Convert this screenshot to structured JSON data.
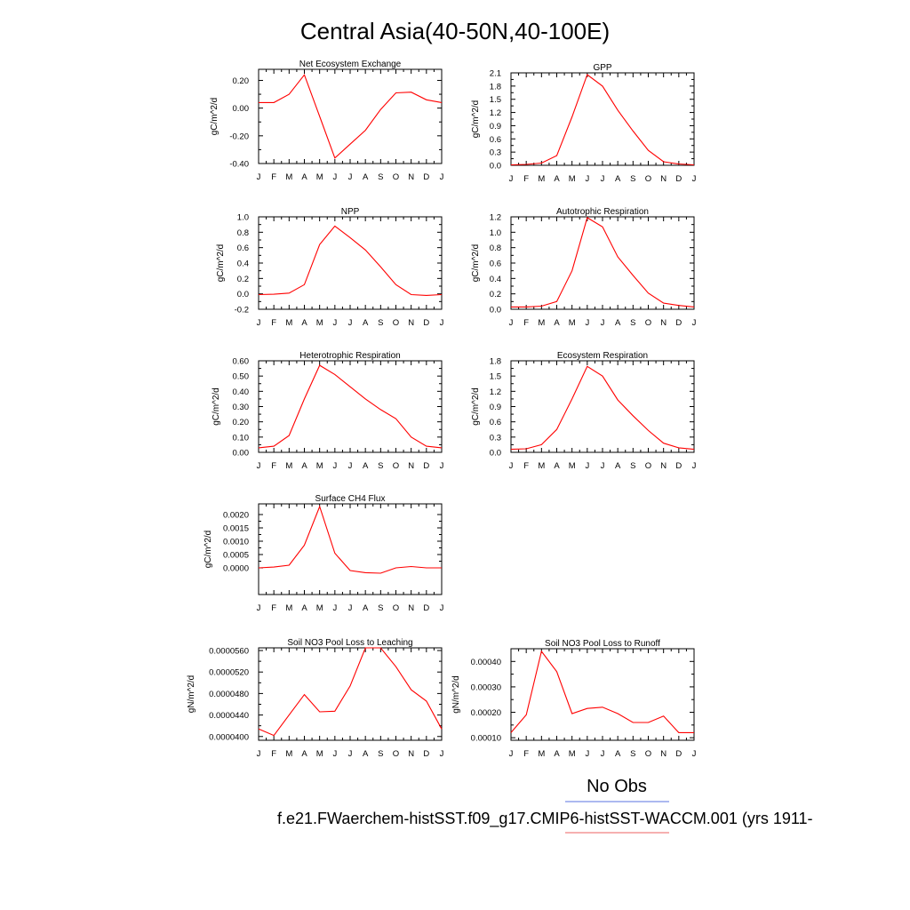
{
  "figure": {
    "title": "Central Asia(40-50N,40-100E)",
    "legend": [
      {
        "label": "No Obs",
        "color": "#7b8fe8"
      },
      {
        "label": "",
        "color": "#f08080"
      }
    ],
    "caption": "f.e21.FWaerchem-histSST.f09_g17.CMIP6-histSST-WACCM.001 (yrs 1911-"
  },
  "chart_data": [
    {
      "type": "line",
      "title": "Net Ecosystem Exchange",
      "ylabel": "gC/m^2/d",
      "categories": [
        "J",
        "F",
        "M",
        "A",
        "M",
        "J",
        "J",
        "A",
        "S",
        "O",
        "N",
        "D",
        "J"
      ],
      "yticks": [
        "-0.40",
        "-0.20",
        "0.00",
        "0.20"
      ],
      "ylim": [
        -0.4,
        0.28
      ],
      "series": [
        {
          "color": "#ff0000",
          "values": [
            0.04,
            0.04,
            0.1,
            0.24,
            -0.06,
            -0.36,
            -0.26,
            -0.16,
            -0.01,
            0.11,
            0.115,
            0.06,
            0.04
          ]
        }
      ]
    },
    {
      "type": "line",
      "title": "GPP",
      "ylabel": "gC/m^2/d",
      "categories": [
        "J",
        "F",
        "M",
        "A",
        "M",
        "J",
        "J",
        "A",
        "S",
        "O",
        "N",
        "D",
        "J"
      ],
      "yticks": [
        "0.0",
        "0.3",
        "0.6",
        "0.9",
        "1.2",
        "1.5",
        "1.8",
        "2.1"
      ],
      "ylim": [
        0.0,
        2.1
      ],
      "series": [
        {
          "color": "#ff0000",
          "values": [
            0.01,
            0.02,
            0.05,
            0.22,
            1.1,
            2.06,
            1.8,
            1.25,
            0.78,
            0.34,
            0.08,
            0.03,
            0.01
          ]
        }
      ]
    },
    {
      "type": "line",
      "title": "NPP",
      "ylabel": "gC/m^2/d",
      "categories": [
        "J",
        "F",
        "M",
        "A",
        "M",
        "J",
        "J",
        "A",
        "S",
        "O",
        "N",
        "D",
        "J"
      ],
      "yticks": [
        "-0.2",
        "0.0",
        "0.2",
        "0.4",
        "0.6",
        "0.8",
        "1.0"
      ],
      "ylim": [
        -0.2,
        1.0
      ],
      "series": [
        {
          "color": "#ff0000",
          "values": [
            -0.01,
            -0.005,
            0.01,
            0.12,
            0.64,
            0.88,
            0.73,
            0.57,
            0.35,
            0.12,
            -0.01,
            -0.02,
            -0.01
          ]
        }
      ]
    },
    {
      "type": "line",
      "title": "Autotrophic Respiration",
      "ylabel": "gC/m^2/d",
      "categories": [
        "J",
        "F",
        "M",
        "A",
        "M",
        "J",
        "J",
        "A",
        "S",
        "O",
        "N",
        "D",
        "J"
      ],
      "yticks": [
        "0.0",
        "0.2",
        "0.4",
        "0.6",
        "0.8",
        "1.0",
        "1.2"
      ],
      "ylim": [
        0.0,
        1.2
      ],
      "series": [
        {
          "color": "#ff0000",
          "values": [
            0.03,
            0.03,
            0.04,
            0.1,
            0.5,
            1.19,
            1.07,
            0.68,
            0.44,
            0.21,
            0.08,
            0.05,
            0.03
          ]
        }
      ]
    },
    {
      "type": "line",
      "title": "Heterotrophic Respiration",
      "ylabel": "gC/m^2/d",
      "categories": [
        "J",
        "F",
        "M",
        "A",
        "M",
        "J",
        "J",
        "A",
        "S",
        "O",
        "N",
        "D",
        "J"
      ],
      "yticks": [
        "0.00",
        "0.10",
        "0.20",
        "0.30",
        "0.40",
        "0.50",
        "0.60"
      ],
      "ylim": [
        0.0,
        0.6
      ],
      "series": [
        {
          "color": "#ff0000",
          "values": [
            0.03,
            0.04,
            0.11,
            0.35,
            0.57,
            0.51,
            0.43,
            0.35,
            0.28,
            0.22,
            0.1,
            0.04,
            0.03
          ]
        }
      ]
    },
    {
      "type": "line",
      "title": "Ecosystem Respiration",
      "ylabel": "gC/m^2/d",
      "categories": [
        "J",
        "F",
        "M",
        "A",
        "M",
        "J",
        "J",
        "A",
        "S",
        "O",
        "N",
        "D",
        "J"
      ],
      "yticks": [
        "0.0",
        "0.3",
        "0.6",
        "0.9",
        "1.2",
        "1.5",
        "1.8"
      ],
      "ylim": [
        0.0,
        1.8
      ],
      "series": [
        {
          "color": "#ff0000",
          "values": [
            0.06,
            0.07,
            0.15,
            0.45,
            1.05,
            1.69,
            1.5,
            1.03,
            0.72,
            0.43,
            0.18,
            0.09,
            0.06
          ]
        }
      ]
    },
    {
      "type": "line",
      "title": "Surface CH4 Flux",
      "ylabel": "gC/m^2/d",
      "categories": [
        "J",
        "F",
        "M",
        "A",
        "M",
        "J",
        "J",
        "A",
        "S",
        "O",
        "N",
        "D",
        "J"
      ],
      "yticks": [
        "0.0000",
        "0.0005",
        "0.0010",
        "0.0015",
        "0.0020"
      ],
      "ylim": [
        -0.001,
        0.0024
      ],
      "series": [
        {
          "color": "#ff0000",
          "values": [
            0.0,
            3e-05,
            0.0001,
            0.00085,
            0.0023,
            0.00055,
            -0.0001,
            -0.00018,
            -0.0002,
            0.0,
            5e-05,
            0.0,
            0.0
          ]
        }
      ]
    },
    {
      "type": "line",
      "title": "Soil NO3 Pool Loss to Leaching",
      "ylabel": "gN/m^2/d",
      "categories": [
        "J",
        "F",
        "M",
        "A",
        "M",
        "J",
        "J",
        "A",
        "S",
        "O",
        "N",
        "D",
        "J"
      ],
      "yticks": [
        "0.0000400",
        "0.0000440",
        "0.0000480",
        "0.0000520",
        "0.0000560"
      ],
      "ylim": [
        3.93e-05,
        5.65e-05
      ],
      "series": [
        {
          "color": "#ff0000",
          "values": [
            4.14e-05,
            4.02e-05,
            4.4e-05,
            4.78e-05,
            4.46e-05,
            4.47e-05,
            4.94e-05,
            5.65e-05,
            5.65e-05,
            5.3e-05,
            4.87e-05,
            4.66e-05,
            4.14e-05
          ]
        }
      ]
    },
    {
      "type": "line",
      "title": "Soil NO3 Pool Loss to Runoff",
      "ylabel": "gN/m^2/d",
      "categories": [
        "J",
        "F",
        "M",
        "A",
        "M",
        "J",
        "J",
        "A",
        "S",
        "O",
        "N",
        "D",
        "J"
      ],
      "yticks": [
        "0.00010",
        "0.00020",
        "0.00030",
        "0.00040"
      ],
      "ylim": [
        9e-05,
        0.00045
      ],
      "series": [
        {
          "color": "#ff0000",
          "values": [
            0.00012,
            0.00019,
            0.00044,
            0.00036,
            0.000195,
            0.000215,
            0.00022,
            0.000195,
            0.00016,
            0.00016,
            0.000185,
            0.00012,
            0.00012
          ]
        }
      ]
    }
  ]
}
